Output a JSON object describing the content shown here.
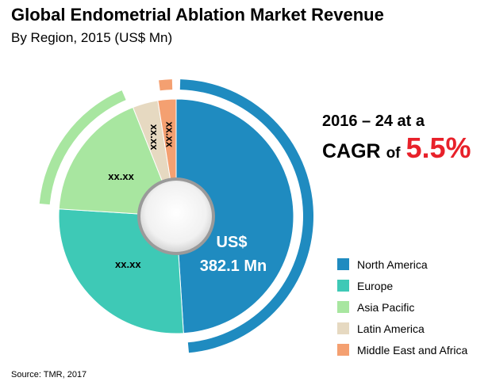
{
  "header": {
    "title": "Global Endometrial Ablation Market Revenue",
    "subtitle": "By Region, 2015 (US$ Mn)"
  },
  "cagr": {
    "line1": "2016 – 24 at a",
    "prefix": "CAGR",
    "of": "of",
    "rate": "5.5%",
    "rate_color": "#e8212a"
  },
  "source": "Source: TMR, 2017",
  "chart_data": {
    "type": "pie",
    "variant": "donut",
    "title": "Global Endometrial Ablation Market Revenue",
    "subtitle": "By Region, 2015 (US$ Mn)",
    "unit": "US$ Mn",
    "legend_position": "right",
    "center_label": {
      "line1": "US$",
      "line2": "382.1 Mn"
    },
    "slices": [
      {
        "name": "North America",
        "share": 0.49,
        "label": "",
        "color": "#1f8bc0"
      },
      {
        "name": "Europe",
        "share": 0.27,
        "label": "xx.xx",
        "color": "#3ec9b6"
      },
      {
        "name": "Asia Pacific",
        "share": 0.18,
        "label": "xx.xx",
        "color": "#a8e6a0"
      },
      {
        "name": "Latin America",
        "share": 0.035,
        "label": "xx.xx",
        "color": "#e6d9c1"
      },
      {
        "name": "Middle East and Africa",
        "share": 0.025,
        "label": "xx.xx",
        "color": "#f4a071"
      }
    ]
  }
}
